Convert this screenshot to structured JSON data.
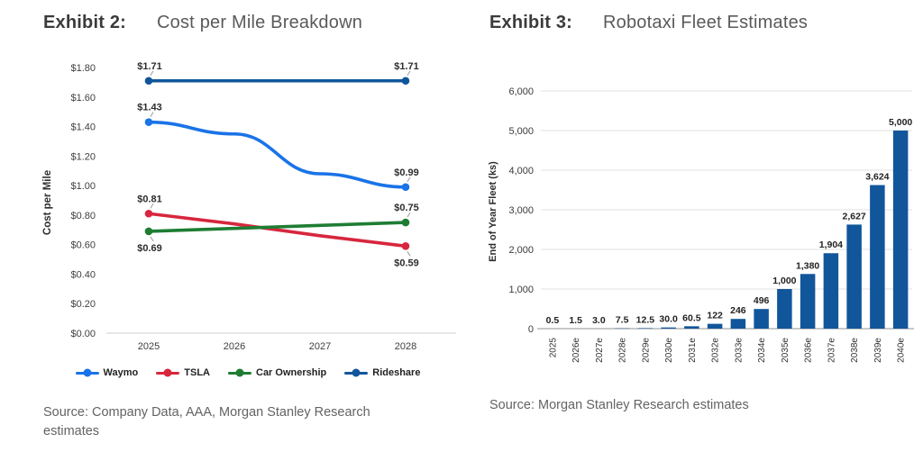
{
  "chart_data": [
    {
      "type": "line",
      "exhibit": "Exhibit 2:",
      "title": "Cost per Mile Breakdown",
      "source": "Source: Company Data, AAA, Morgan Stanley Research estimates",
      "x": [
        "2025",
        "2026",
        "2027",
        "2028"
      ],
      "xlabel": "",
      "ylabel": "Cost per Mile",
      "ylim": [
        0,
        1.8
      ],
      "ytick_labels": [
        "$0.00",
        "$0.20",
        "$0.40",
        "$0.60",
        "$0.80",
        "$1.00",
        "$1.20",
        "$1.40",
        "$1.60",
        "$1.80"
      ],
      "grid": false,
      "legend_position": "bottom",
      "series": [
        {
          "name": "Waymo",
          "color": "#1a73e8",
          "smooth": true,
          "values": [
            1.43,
            1.35,
            1.08,
            0.99
          ],
          "endpoint_labels": [
            "$1.43",
            "$0.99"
          ],
          "label_side": [
            "above",
            "above"
          ]
        },
        {
          "name": "TSLA",
          "color": "#d7263d",
          "smooth": false,
          "values": [
            0.81,
            0.74,
            0.66,
            0.59
          ],
          "endpoint_labels": [
            "$0.81",
            "$0.59"
          ],
          "label_side": [
            "above",
            "below"
          ]
        },
        {
          "name": "Car Ownership",
          "color": "#1e7d32",
          "smooth": false,
          "values": [
            0.69,
            0.71,
            0.73,
            0.75
          ],
          "endpoint_labels": [
            "$0.69",
            "$0.75"
          ],
          "label_side": [
            "below",
            "above"
          ]
        },
        {
          "name": "Rideshare",
          "color": "#11569b",
          "smooth": false,
          "values": [
            1.71,
            1.71,
            1.71,
            1.71
          ],
          "endpoint_labels": [
            "$1.71",
            "$1.71"
          ],
          "label_side": [
            "above",
            "above"
          ]
        }
      ]
    },
    {
      "type": "bar",
      "exhibit": "Exhibit 3:",
      "title": "Robotaxi Fleet Estimates",
      "source": "Source: Morgan Stanley Research estimates",
      "categories": [
        "2025",
        "2026e",
        "2027e",
        "2028e",
        "2029e",
        "2030e",
        "2031e",
        "2032e",
        "2033e",
        "2034e",
        "2035e",
        "2036e",
        "2037e",
        "2038e",
        "2039e",
        "2040e"
      ],
      "values": [
        0.5,
        1.5,
        3.0,
        7.5,
        12.5,
        30.0,
        60.5,
        122,
        246,
        496,
        1000,
        1380,
        1904,
        2627,
        3624,
        5000
      ],
      "value_labels": [
        "0.5",
        "1.5",
        "3.0",
        "7.5",
        "12.5",
        "30.0",
        "60.5",
        "122",
        "246",
        "496",
        "1,000",
        "1,380",
        "1,904",
        "2,627",
        "3,624",
        "5,000"
      ],
      "xlabel": "",
      "ylabel": "End of Year Fleet (ks)",
      "ylim": [
        0,
        6000
      ],
      "ytick_labels": [
        "0",
        "1,000",
        "2,000",
        "3,000",
        "4,000",
        "5,000",
        "6,000"
      ],
      "grid": true,
      "bar_color": "#11569b",
      "legend_position": "none"
    }
  ],
  "colors": {
    "waymo": "#1a73e8",
    "tsla": "#d7263d",
    "car_ownership": "#1e7d32",
    "rideshare": "#11569b",
    "bar": "#11569b",
    "gridline": "#e0e0e0",
    "axis_line": "#a8a8a8"
  }
}
